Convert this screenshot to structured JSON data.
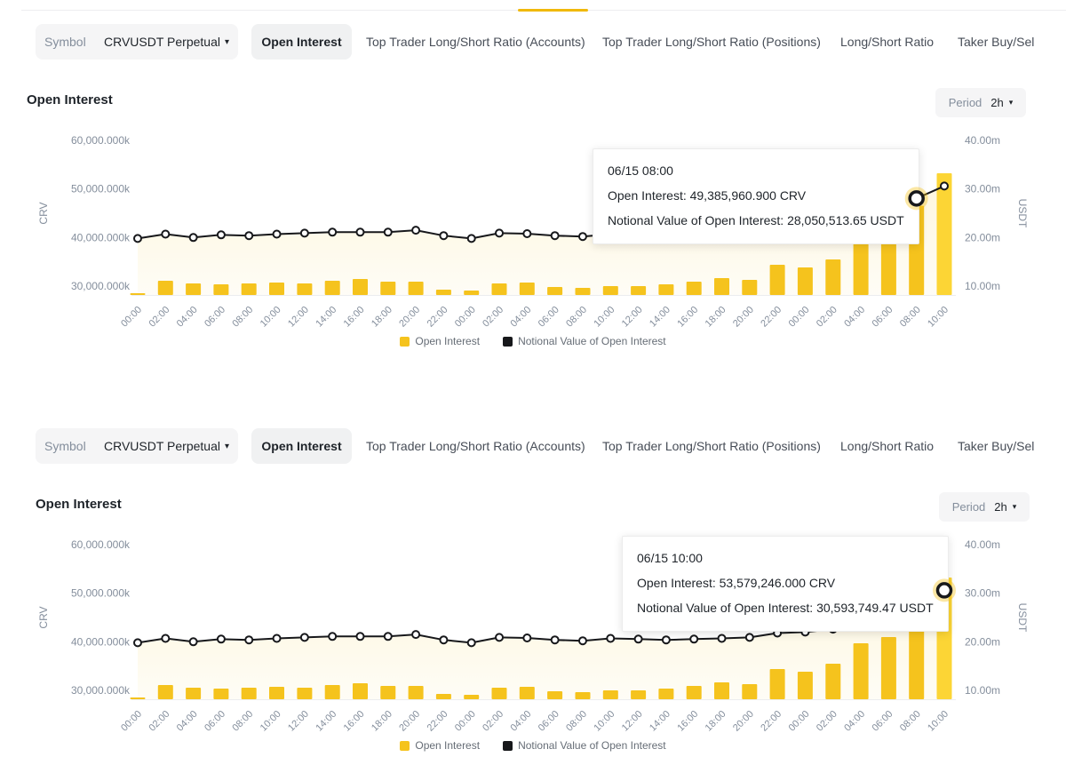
{
  "top_nav": {
    "note": "bottom edge of an off-screen tab row with a yellow active-tab underline"
  },
  "panels": [
    {
      "tabs": {
        "symbol_label": "Symbol",
        "symbol_value": "CRVUSDT Perpetual",
        "items": [
          "Open Interest",
          "Top Trader Long/Short Ratio (Accounts)",
          "Top Trader Long/Short Ratio (Positions)",
          "Long/Short Ratio",
          "Taker Buy/Sel"
        ],
        "active": "Open Interest"
      },
      "title": "Open Interest",
      "period": {
        "label": "Period",
        "value": "2h"
      },
      "tooltip": {
        "title": "06/15 08:00",
        "oi_line": "Open Interest: 49,385,960.900 CRV",
        "notional_line": "Notional Value of Open Interest: 28,050,513.65 USDT",
        "highlight_index": 28
      },
      "legend": [
        "Open Interest",
        "Notional Value of Open Interest"
      ]
    },
    {
      "tabs": {
        "symbol_label": "Symbol",
        "symbol_value": "CRVUSDT Perpetual",
        "items": [
          "Open Interest",
          "Top Trader Long/Short Ratio (Accounts)",
          "Top Trader Long/Short Ratio (Positions)",
          "Long/Short Ratio",
          "Taker Buy/Sel"
        ],
        "active": "Open Interest"
      },
      "title": "Open Interest",
      "period": {
        "label": "Period",
        "value": "2h"
      },
      "tooltip": {
        "title": "06/15 10:00",
        "oi_line": "Open Interest: 53,579,246.000 CRV",
        "notional_line": "Notional Value of Open Interest: 30,593,749.47 USDT",
        "highlight_index": 29
      },
      "legend": [
        "Open Interest",
        "Notional Value of Open Interest"
      ]
    }
  ],
  "chart_data": {
    "type": "bar+line dual-axis, rendered identically in both panels",
    "categories": [
      "00:00",
      "02:00",
      "04:00",
      "06:00",
      "08:00",
      "10:00",
      "12:00",
      "14:00",
      "16:00",
      "18:00",
      "20:00",
      "22:00",
      "00:00",
      "02:00",
      "04:00",
      "06:00",
      "08:00",
      "10:00",
      "12:00",
      "14:00",
      "16:00",
      "18:00",
      "20:00",
      "22:00",
      "00:00",
      "02:00",
      "04:00",
      "06:00",
      "08:00",
      "10:00"
    ],
    "series": [
      {
        "name": "Open Interest",
        "type": "bar",
        "axis": "left-hidden",
        "unit": "million CRV",
        "values": [
          38.13,
          39.73,
          39.39,
          39.27,
          39.39,
          39.5,
          39.39,
          39.73,
          39.96,
          39.62,
          39.62,
          38.59,
          38.47,
          39.39,
          39.5,
          38.93,
          38.82,
          39.04,
          39.04,
          39.27,
          39.62,
          40.07,
          39.84,
          41.79,
          41.45,
          42.48,
          45.11,
          45.91,
          49.386,
          53.579
        ],
        "color": "#F5C31D",
        "last_bar_color": "#FCD535"
      },
      {
        "name": "Notional Value of Open Interest",
        "type": "line",
        "axis": "right",
        "unit": "million USDT",
        "values": [
          19.8,
          20.7,
          20.0,
          20.55,
          20.4,
          20.7,
          20.9,
          21.1,
          21.1,
          21.1,
          21.5,
          20.4,
          19.8,
          20.9,
          20.8,
          20.4,
          20.2,
          20.7,
          20.55,
          20.4,
          20.55,
          20.7,
          20.9,
          21.8,
          22.0,
          22.6,
          23.1,
          25.5,
          28.050513,
          30.593749
        ],
        "color": "#17181B"
      }
    ],
    "left_axis": {
      "title": "CRV",
      "ticks": [
        "60,000.000k",
        "50,000.000k",
        "40,000.000k",
        "30,000.000k"
      ]
    },
    "right_axis": {
      "title": "USDT",
      "ticks": [
        "40.00m",
        "30.00m",
        "20.00m",
        "10.00m"
      ],
      "range_million": [
        10,
        40
      ]
    },
    "grid": false,
    "legend_position": "bottom-center",
    "x_label_rotation": 45,
    "bar_hidden_scale_million": [
      37.9,
      53.58
    ]
  }
}
